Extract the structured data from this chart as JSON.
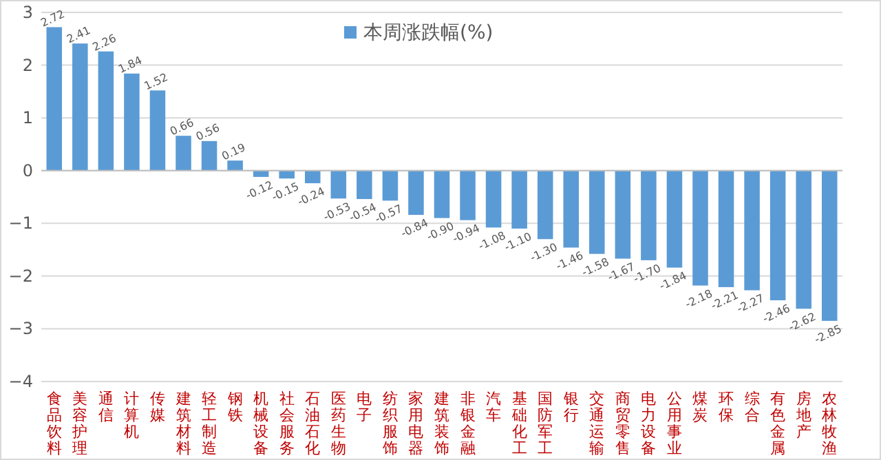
{
  "chart_data": {
    "type": "bar",
    "categories": [
      "食品饮料",
      "美容护理",
      "通信",
      "计算机",
      "传媒",
      "建筑材料",
      "轻工制造",
      "钢铁",
      "机械设备",
      "社会服务",
      "石油石化",
      "医药生物",
      "电子",
      "纺织服饰",
      "家用电器",
      "建筑装饰",
      "非银金融",
      "汽车",
      "基础化工",
      "国防军工",
      "银行",
      "交通运输",
      "商贸零售",
      "电力设备",
      "公用事业",
      "煤炭",
      "环保",
      "综合",
      "有色金属",
      "房地产",
      "农林牧渔"
    ],
    "series": [
      {
        "name": "本周涨跌幅(%)",
        "color": "#5b9bd5",
        "value_labels": [
          "2.72",
          "2.41",
          "2.26",
          "1.84",
          "1.52",
          "0.66",
          "0.56",
          "0.19",
          "-0.12",
          "-0.15",
          "-0.24",
          "-0.53",
          "-0.54",
          "-0.57",
          "-0.84",
          "-0.90",
          "-0.94",
          "-1.08",
          "-1.10",
          "-1.30",
          "-1.46",
          "-1.58",
          "-1.67",
          "-1.70",
          "-1.84",
          "-2.18",
          "-2.21",
          "-2.27",
          "-2.46",
          "-2.62",
          "-2.85"
        ],
        "values": [
          2.72,
          2.41,
          2.26,
          1.84,
          1.52,
          0.66,
          0.56,
          0.19,
          -0.12,
          -0.15,
          -0.24,
          -0.53,
          -0.54,
          -0.57,
          -0.84,
          -0.9,
          -0.94,
          -1.08,
          -1.1,
          -1.3,
          -1.46,
          -1.58,
          -1.67,
          -1.7,
          -1.84,
          -2.18,
          -2.21,
          -2.27,
          -2.46,
          -2.62,
          -2.85
        ]
      }
    ],
    "ylim": [
      -4,
      3
    ],
    "yticks": [
      -4,
      -3,
      -2,
      -1,
      0,
      1,
      2,
      3
    ],
    "grid": "y",
    "legend": "top"
  }
}
